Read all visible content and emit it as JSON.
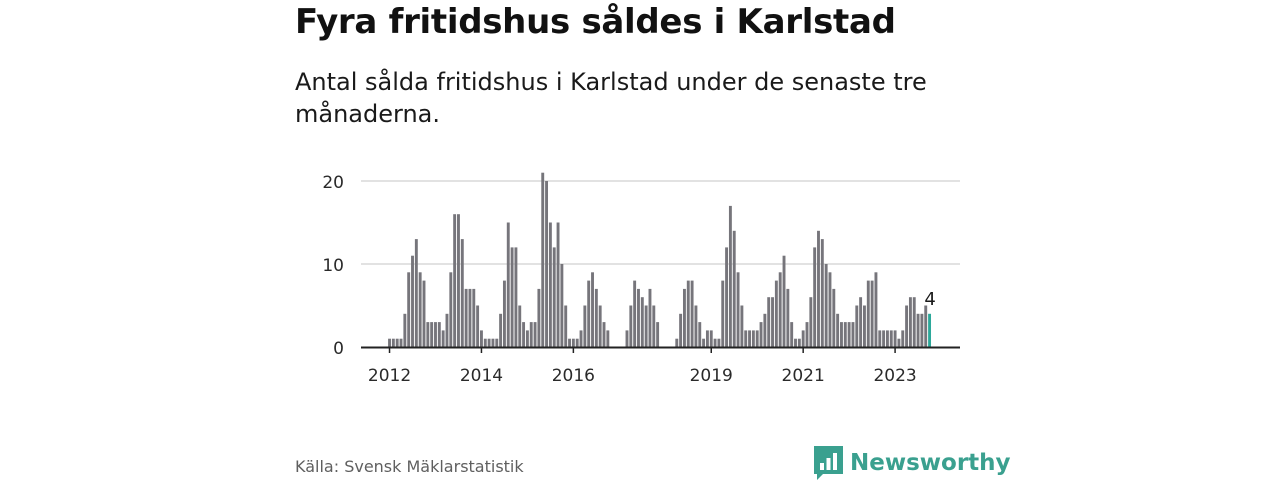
{
  "title": "Fyra fritidshus såldes i Karlstad",
  "subtitle": "Antal sålda fritidshus i Karlstad under de senaste tre månaderna.",
  "source": "Källa: Svensk Mäklarstatistik",
  "brand": {
    "name": "Newsworthy",
    "icon": "bar-chart-icon",
    "color": "#3aa08f"
  },
  "chart_data": {
    "type": "bar",
    "y_ticks": [
      0,
      10,
      20
    ],
    "ylim": [
      0,
      22
    ],
    "grid": true,
    "x_tick_labels": [
      "2012",
      "2014",
      "2016",
      "2019",
      "2021",
      "2023"
    ],
    "x_tick_index": [
      1,
      25,
      49,
      85,
      109,
      133
    ],
    "series_color": "#76757b",
    "highlight_color": "#2ca89a",
    "highlight_label": "4",
    "values": [
      0,
      1,
      1,
      1,
      1,
      4,
      9,
      11,
      13,
      9,
      8,
      3,
      3,
      3,
      3,
      2,
      4,
      9,
      16,
      16,
      13,
      7,
      7,
      7,
      5,
      2,
      1,
      1,
      1,
      1,
      4,
      8,
      15,
      12,
      12,
      5,
      3,
      2,
      3,
      3,
      7,
      21,
      20,
      15,
      12,
      15,
      10,
      5,
      1,
      1,
      1,
      2,
      5,
      8,
      9,
      7,
      5,
      3,
      2,
      0,
      0,
      0,
      0,
      2,
      5,
      8,
      7,
      6,
      5,
      7,
      5,
      3,
      0,
      0,
      0,
      0,
      1,
      4,
      7,
      8,
      8,
      5,
      3,
      1,
      2,
      2,
      1,
      1,
      8,
      12,
      17,
      14,
      9,
      5,
      2,
      2,
      2,
      2,
      3,
      4,
      6,
      6,
      8,
      9,
      11,
      7,
      3,
      1,
      1,
      2,
      3,
      6,
      12,
      14,
      13,
      10,
      9,
      7,
      4,
      3,
      3,
      3,
      3,
      5,
      6,
      5,
      8,
      8,
      9,
      2,
      2,
      2,
      2,
      2,
      1,
      2,
      5,
      6,
      6,
      4,
      4,
      5,
      4
    ]
  }
}
